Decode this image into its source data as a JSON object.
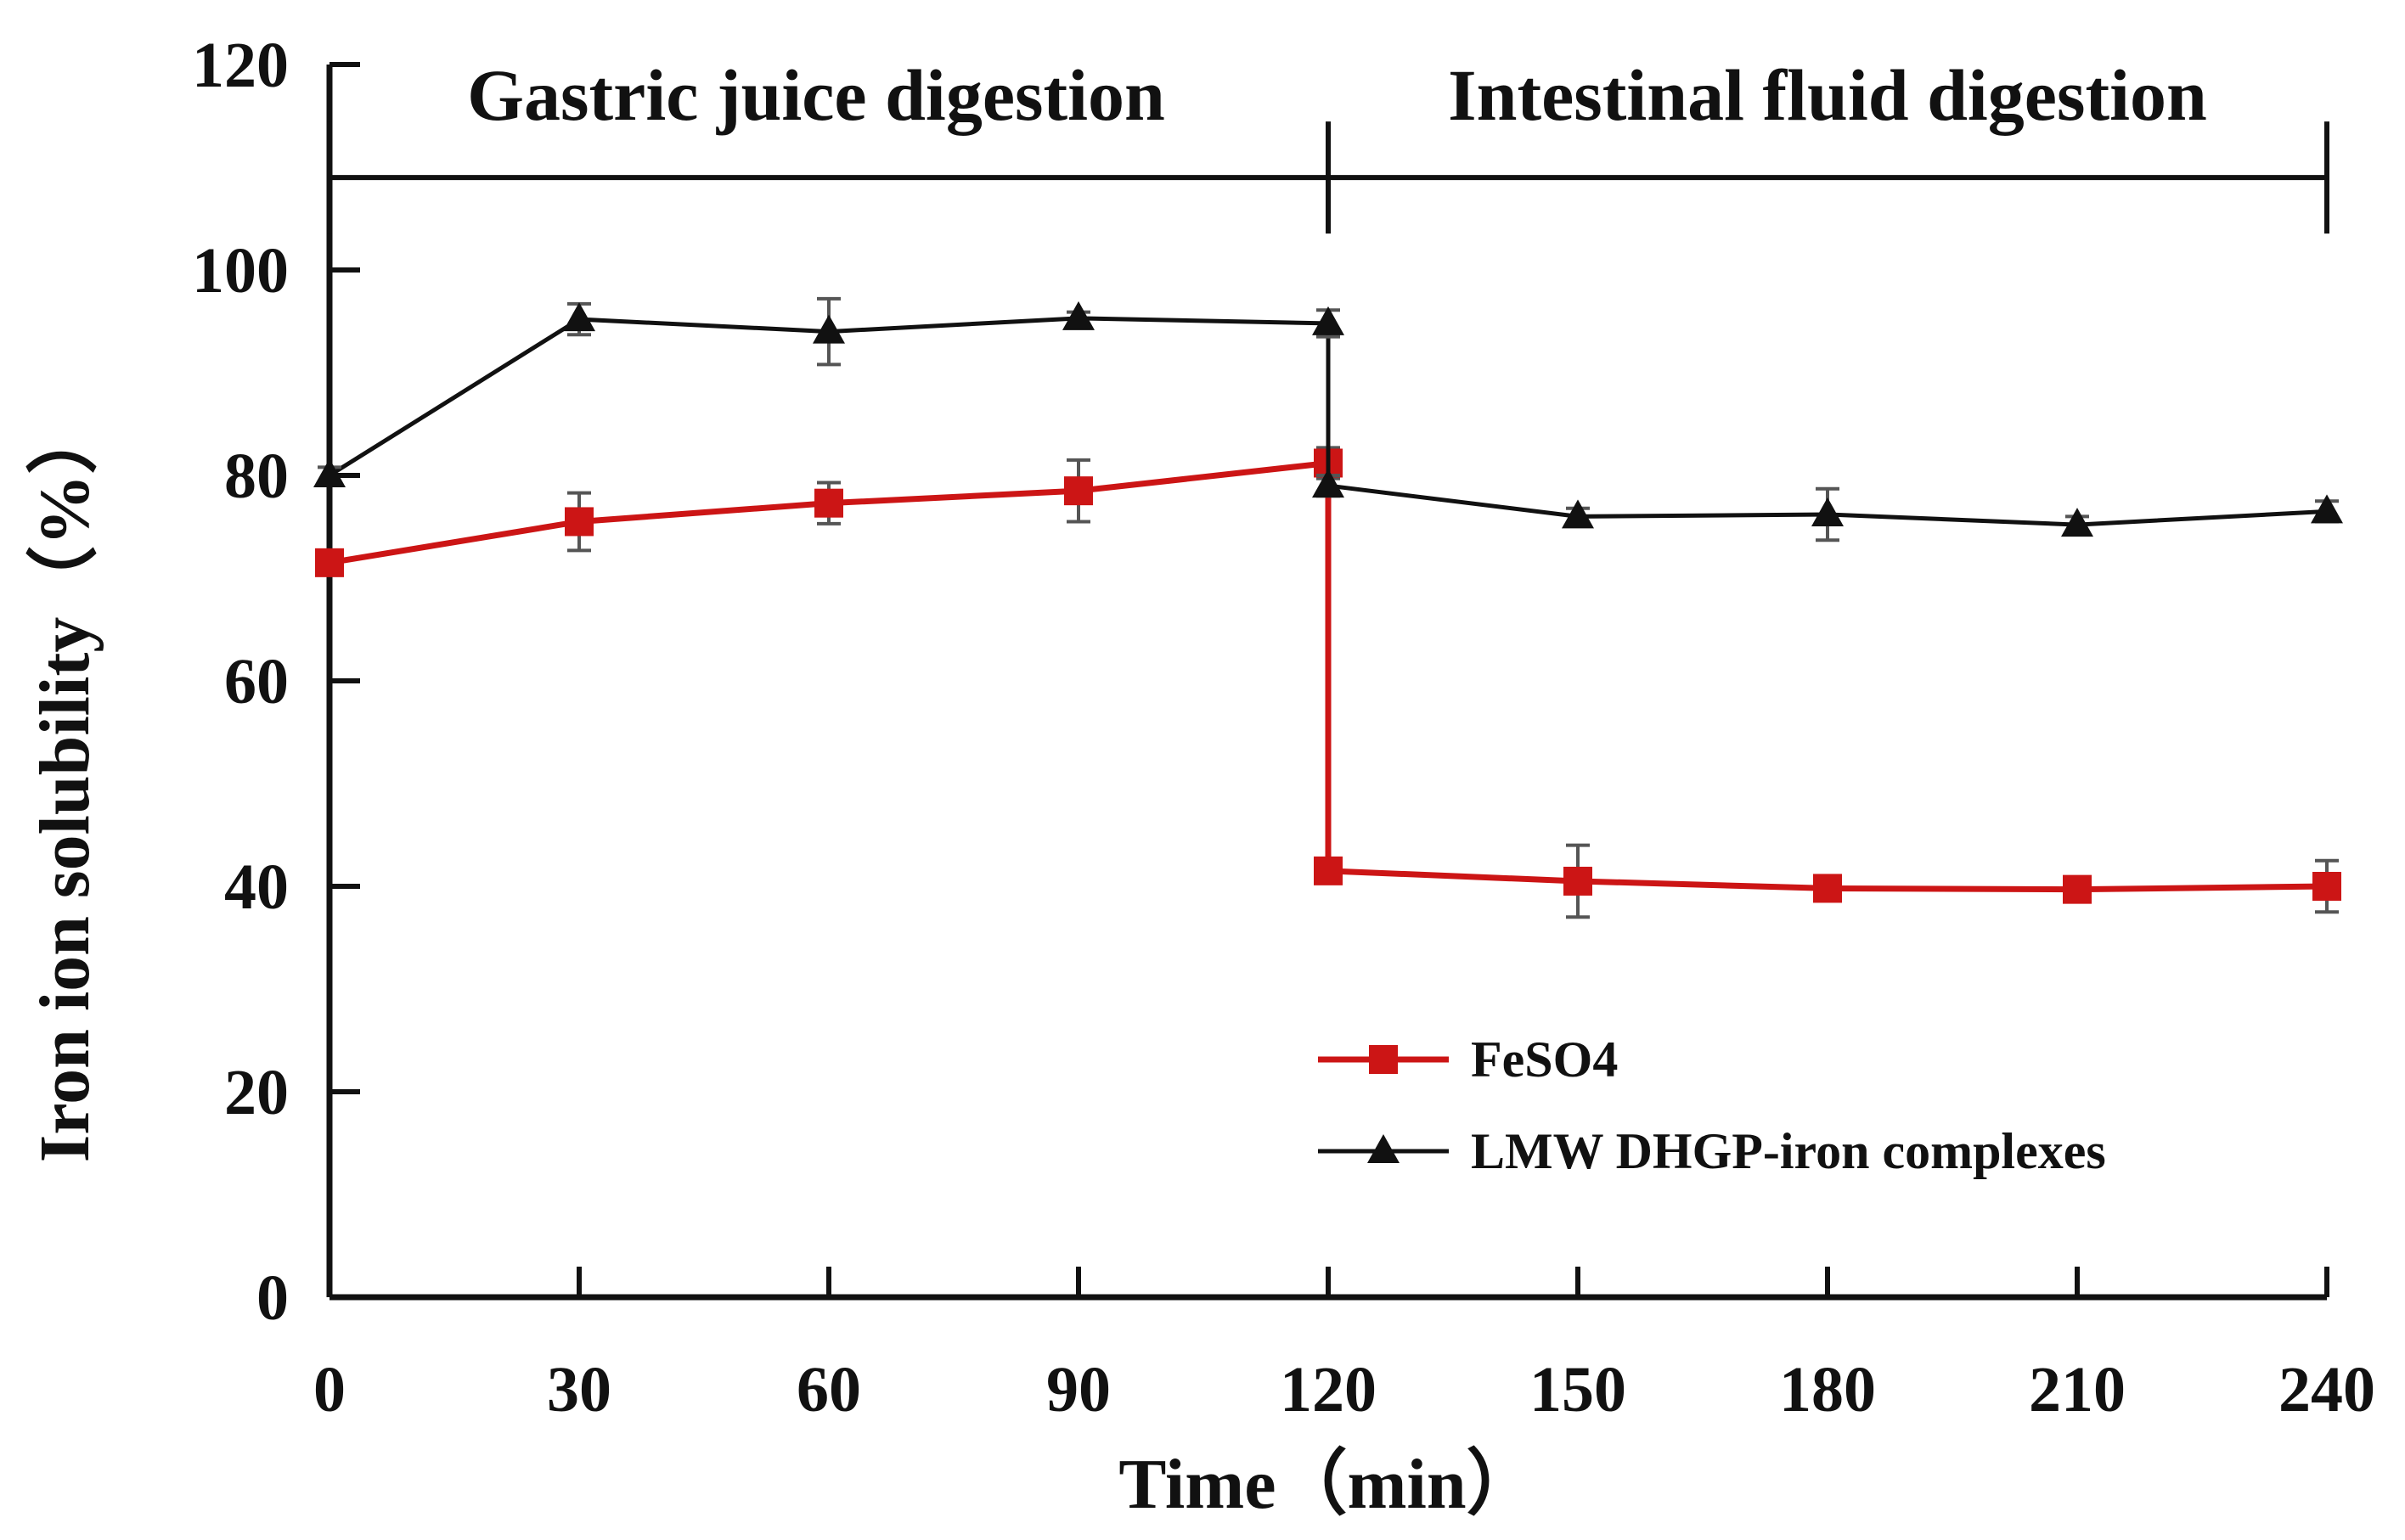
{
  "chart_data": {
    "type": "line",
    "title": "",
    "xlabel": "Time（min）",
    "ylabel": "Iron ion solubility（%）",
    "x": [
      0,
      30,
      60,
      90,
      120,
      120,
      150,
      180,
      210,
      240
    ],
    "x_ticks": [
      0,
      30,
      60,
      90,
      120,
      150,
      180,
      210,
      240
    ],
    "x_tick_labels": [
      "0",
      "30",
      "60",
      "90",
      "120",
      "150",
      "180",
      "210",
      "240"
    ],
    "y_ticks": [
      0,
      20,
      40,
      60,
      80,
      100,
      120
    ],
    "y_tick_labels": [
      "0",
      "20",
      "40",
      "60",
      "80",
      "100",
      "120"
    ],
    "xlim": [
      0,
      240
    ],
    "ylim": [
      0,
      120
    ],
    "grid": false,
    "series": [
      {
        "name": "FeSO4",
        "color": "#cc1515",
        "marker": "square",
        "values": [
          71.5,
          75.5,
          77.3,
          78.5,
          81.2,
          41.5,
          40.5,
          39.8,
          39.7,
          40.0
        ],
        "errors": [
          1.0,
          2.8,
          2.0,
          3.0,
          1.5,
          1.2,
          3.5,
          1.2,
          1.2,
          2.5
        ]
      },
      {
        "name": "LMW DHGP-iron complexes",
        "color": "#111111",
        "marker": "triangle",
        "values": [
          80.0,
          95.2,
          94.0,
          95.3,
          94.8,
          79.0,
          76.0,
          76.2,
          75.2,
          76.5
        ],
        "errors": [
          0.8,
          1.5,
          3.2,
          0.6,
          1.3,
          1.0,
          0.8,
          2.5,
          0.8,
          1.0
        ]
      }
    ],
    "phases": [
      {
        "label": "Gastric juice digestion",
        "start": 0,
        "end": 120
      },
      {
        "label": "Intestinal fluid digestion",
        "start": 120,
        "end": 240
      }
    ],
    "phase_line_y": 109,
    "legend_position": "lower-right"
  }
}
